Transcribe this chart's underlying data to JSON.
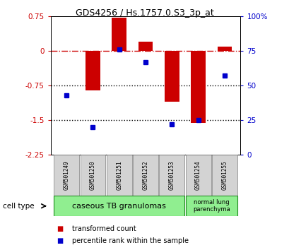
{
  "title": "GDS4256 / Hs.1757.0.S3_3p_at",
  "samples": [
    "GSM501249",
    "GSM501250",
    "GSM501251",
    "GSM501252",
    "GSM501253",
    "GSM501254",
    "GSM501255"
  ],
  "red_values": [
    0.0,
    -0.85,
    0.72,
    0.2,
    -1.1,
    -1.55,
    0.1
  ],
  "blue_values_pct": [
    43,
    20,
    76,
    67,
    22,
    25,
    57
  ],
  "ylim_left": [
    -2.25,
    0.75
  ],
  "ylim_right": [
    0,
    100
  ],
  "yticks_left": [
    0.75,
    0,
    -0.75,
    -1.5,
    -2.25
  ],
  "yticks_right": [
    100,
    75,
    50,
    25,
    0
  ],
  "hlines_dotted": [
    -0.75,
    -1.5
  ],
  "hline_dashdot": 0.0,
  "cell_type_label": "cell type",
  "group1_label": "caseous TB granulomas",
  "group2_label": "normal lung\nparenchyma",
  "group1_color": "#90EE90",
  "group2_color": "#90EE90",
  "bar_color": "#CC0000",
  "dot_color": "#0000CC",
  "tick_color_left": "#CC0000",
  "tick_color_right": "#0000CC",
  "background_color": "#ffffff",
  "legend_red_label": "transformed count",
  "legend_blue_label": "percentile rank within the sample",
  "bar_width": 0.55,
  "sample_box_color": "#d3d3d3",
  "sample_box_edge": "#808080"
}
